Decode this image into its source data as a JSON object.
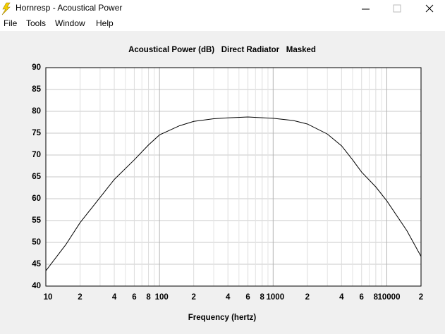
{
  "window": {
    "title": "Hornresp - Acoustical Power"
  },
  "menu": [
    "File",
    "Tools",
    "Window",
    "Help"
  ],
  "chart_data": {
    "type": "line",
    "title": "Acoustical Power (dB)   Direct Radiator   Masked",
    "x_label": "Frequency (hertz)",
    "x": [
      10,
      15,
      20,
      30,
      40,
      60,
      80,
      100,
      150,
      200,
      300,
      400,
      600,
      1000,
      1500,
      2000,
      3000,
      4000,
      5000,
      6000,
      8000,
      10000,
      15000,
      20000
    ],
    "series": [
      {
        "color": "#000000",
        "values": [
          43.5,
          49.5,
          54.5,
          60.3,
          64.4,
          68.9,
          72.3,
          74.6,
          76.7,
          77.7,
          78.3,
          78.5,
          78.7,
          78.4,
          77.9,
          77.1,
          74.8,
          72.1,
          68.9,
          66.1,
          62.7,
          59.5,
          52.7,
          46.8
        ]
      }
    ],
    "xlim": [
      10,
      20000
    ],
    "ylim": [
      40,
      90
    ],
    "log_x": true,
    "grid": true,
    "xticks": [
      10,
      {
        "value": 20,
        "label": "2"
      },
      {
        "value": 40,
        "label": "4"
      },
      {
        "value": 60,
        "label": "6"
      },
      {
        "value": 80,
        "label": "8"
      },
      100,
      {
        "value": 200,
        "label": "2"
      },
      {
        "value": 400,
        "label": "4"
      },
      {
        "value": 600,
        "label": "6"
      },
      {
        "value": 800,
        "label": "8"
      },
      1000,
      {
        "value": 2000,
        "label": "2"
      },
      {
        "value": 4000,
        "label": "4"
      },
      {
        "value": 6000,
        "label": "6"
      },
      {
        "value": 8000,
        "label": "8"
      },
      10000,
      {
        "value": 20000,
        "label": "2"
      }
    ],
    "xminor": [
      30,
      50,
      70,
      90,
      300,
      500,
      700,
      900,
      3000,
      5000,
      7000,
      9000
    ],
    "yticks": [
      40,
      45,
      50,
      55,
      60,
      65,
      70,
      75,
      80,
      85,
      90
    ]
  }
}
